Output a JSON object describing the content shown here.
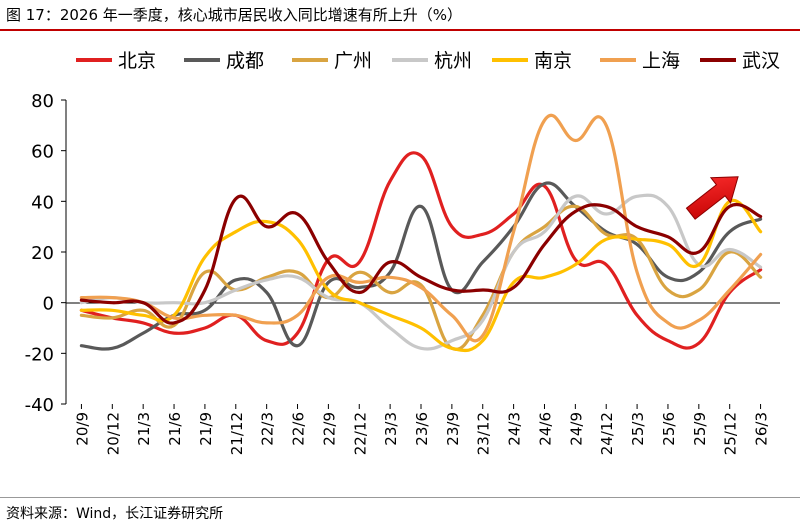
{
  "title": "图 17：2026 年一季度，核心城市居民收入同比增速有所上升（%）",
  "source": "资料来源：Wind，长江证券研究所",
  "chart_data": {
    "type": "line",
    "title": "",
    "xlabel": "",
    "ylabel": "",
    "ylim": [
      -40,
      80
    ],
    "yticks": [
      -40,
      -20,
      0,
      20,
      40,
      60,
      80
    ],
    "grid": false,
    "legend_position": "top",
    "categories": [
      "20/9",
      "20/12",
      "21/3",
      "21/6",
      "21/9",
      "21/12",
      "22/3",
      "22/6",
      "22/9",
      "22/12",
      "23/3",
      "23/6",
      "23/9",
      "23/12",
      "24/3",
      "24/6",
      "24/9",
      "24/12",
      "25/3",
      "25/6",
      "25/9",
      "25/12",
      "26/3"
    ],
    "series": [
      {
        "name": "北京",
        "color": "#e02020",
        "values": [
          -3,
          -6,
          -8,
          -12,
          -10,
          -5,
          -15,
          -12,
          17,
          16,
          48,
          58,
          30,
          27,
          35,
          46,
          17,
          15,
          -5,
          -15,
          -16,
          4,
          13
        ]
      },
      {
        "name": "成都",
        "color": "#595959",
        "values": [
          -17,
          -18,
          -12,
          -5,
          -3,
          9,
          4,
          -17,
          8,
          6,
          12,
          38,
          5,
          16,
          30,
          47,
          38,
          28,
          23,
          10,
          12,
          28,
          33
        ]
      },
      {
        "name": "广州",
        "color": "#d9a441",
        "values": [
          -5,
          -6,
          -3,
          -9,
          12,
          5,
          10,
          12,
          2,
          12,
          4,
          7,
          -18,
          -5,
          20,
          30,
          38,
          27,
          25,
          5,
          5,
          20,
          10
        ]
      },
      {
        "name": "杭州",
        "color": "#c8c8c8",
        "values": [
          0,
          2,
          0,
          0,
          0,
          5,
          9,
          10,
          2,
          0,
          -10,
          -18,
          -15,
          -7,
          20,
          28,
          42,
          35,
          42,
          38,
          15,
          21,
          14
        ]
      },
      {
        "name": "南京",
        "color": "#ffc000",
        "values": [
          -3,
          -3,
          -5,
          -5,
          18,
          28,
          32,
          25,
          5,
          0,
          -5,
          -10,
          -18,
          -15,
          8,
          10,
          15,
          25,
          25,
          23,
          15,
          40,
          28
        ]
      },
      {
        "name": "上海",
        "color": "#f0a050",
        "values": [
          2,
          2,
          0,
          -6,
          -5,
          -5,
          -8,
          -5,
          10,
          8,
          10,
          6,
          -5,
          -13,
          28,
          72,
          64,
          70,
          12,
          -8,
          -7,
          5,
          19
        ]
      },
      {
        "name": "武汉",
        "color": "#8b0000",
        "values": [
          1,
          0,
          0,
          -8,
          5,
          41,
          30,
          35,
          16,
          4,
          16,
          10,
          5,
          5,
          6,
          23,
          36,
          38,
          30,
          26,
          20,
          38,
          34
        ]
      }
    ]
  }
}
